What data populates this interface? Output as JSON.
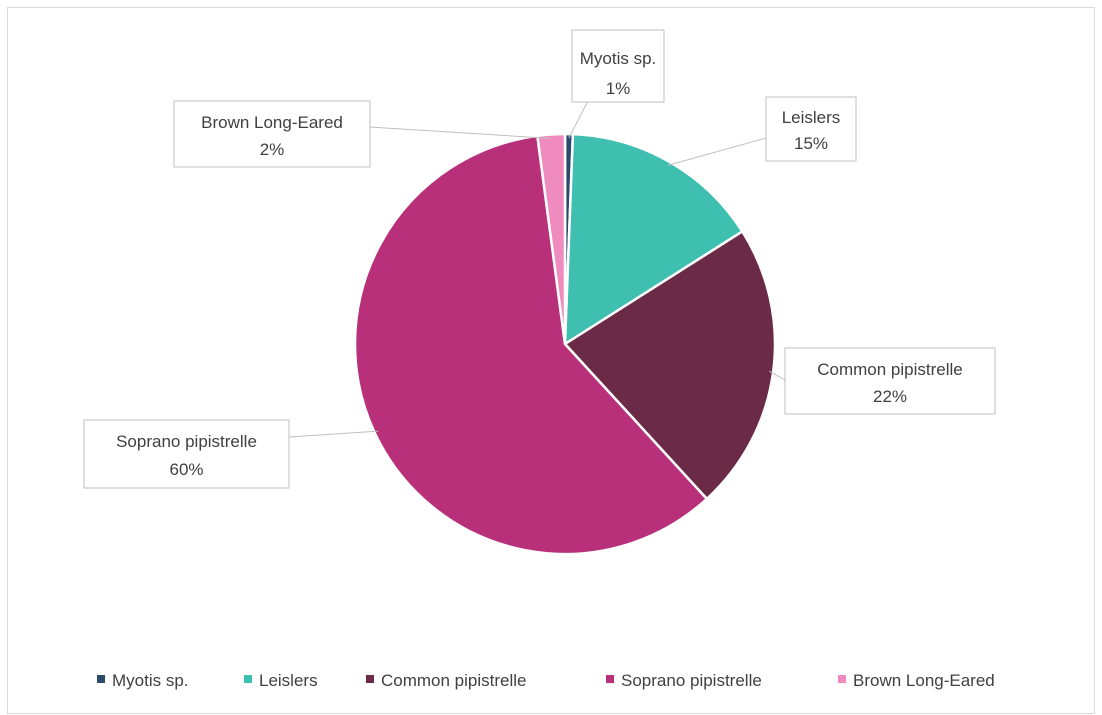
{
  "chart_data": {
    "type": "pie",
    "title": "",
    "categories": [
      "Myotis sp.",
      "Leislers",
      "Common pipistrelle",
      "Soprano pipistrelle",
      "Brown Long-Eared"
    ],
    "values": [
      1,
      15,
      22,
      60,
      2
    ],
    "slice_values": [
      0.6,
      15.4,
      22.2,
      59.7,
      2.1
    ],
    "labels": [
      "1%",
      "15%",
      "22%",
      "60%",
      "2%"
    ],
    "colors": [
      "#2e4a6b",
      "#3fbfb0",
      "#6b2a46",
      "#b83079",
      "#ef8bbf"
    ],
    "legend_position": "bottom",
    "data_label_style": "callout"
  }
}
